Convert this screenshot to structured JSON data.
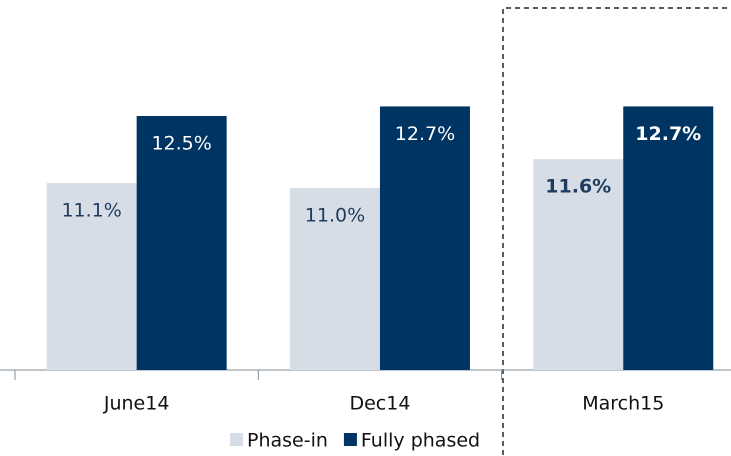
{
  "chart_data": {
    "type": "bar",
    "categories": [
      "June14",
      "Dec14",
      "March15"
    ],
    "series": [
      {
        "name": "Phase-in",
        "color": "#d6dde6",
        "label_color": "#1f3b5e",
        "values": [
          11.1,
          11.0,
          11.6
        ],
        "value_labels": [
          "11.1%",
          "11.0%",
          "11.6%"
        ]
      },
      {
        "name": "Fully phased",
        "color": "#003462",
        "label_color": "#ffffff",
        "values": [
          12.5,
          12.7,
          12.7
        ],
        "value_labels": [
          "12.5%",
          "12.7%",
          "12.7%"
        ]
      }
    ],
    "ylim": [
      7.2,
      14.9
    ],
    "emphasized_category": 2
  }
}
